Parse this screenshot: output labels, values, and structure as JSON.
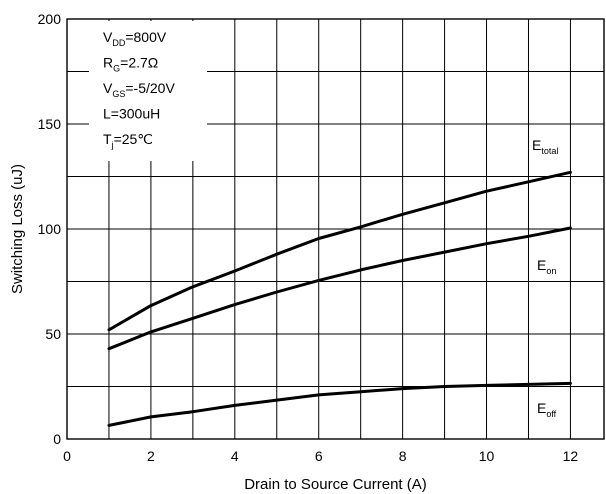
{
  "chart_data": {
    "type": "line",
    "title": "",
    "xlabel": "Drain to Source Current (A)",
    "ylabel": "Switching Loss (uJ)",
    "xlim": [
      0,
      12.8
    ],
    "ylim": [
      0,
      200
    ],
    "x_ticks": [
      "0",
      "2",
      "4",
      "6",
      "8",
      "10",
      "12"
    ],
    "y_ticks": [
      "0",
      "50",
      "100",
      "150",
      "200"
    ],
    "grid": true,
    "conditions": [
      {
        "main": "V",
        "sub": "DD",
        "rest": "=800V"
      },
      {
        "main": "R",
        "sub": "G",
        "rest": "=2.7Ω"
      },
      {
        "main": "V",
        "sub": "GS",
        "rest": "=-5/20V"
      },
      {
        "main": "L=300uH",
        "sub": "",
        "rest": ""
      },
      {
        "main": "T",
        "sub": "j",
        "rest": "=25℃"
      }
    ],
    "series": [
      {
        "name": "Etotal",
        "label_main": "E",
        "label_sub": "total",
        "x": [
          1,
          2,
          3,
          4,
          5,
          6,
          7,
          8,
          9,
          10,
          11,
          12
        ],
        "values": [
          52,
          63.5,
          72.5,
          80,
          88,
          95.5,
          101,
          107,
          112.5,
          118,
          122.5,
          127
        ]
      },
      {
        "name": "Eon",
        "label_main": "E",
        "label_sub": "on",
        "x": [
          1,
          2,
          3,
          4,
          5,
          6,
          7,
          8,
          9,
          10,
          11,
          12
        ],
        "values": [
          43,
          51,
          57.5,
          64,
          70,
          75.5,
          80.5,
          85,
          89,
          93,
          96.5,
          100.5
        ]
      },
      {
        "name": "Eoff",
        "label_main": "E",
        "label_sub": "off",
        "x": [
          1,
          2,
          3,
          4,
          5,
          6,
          7,
          8,
          9,
          10,
          11,
          12
        ],
        "values": [
          6.5,
          10.5,
          13,
          16,
          18.5,
          21,
          22.5,
          24,
          25,
          25.5,
          26,
          26.5
        ]
      }
    ]
  }
}
